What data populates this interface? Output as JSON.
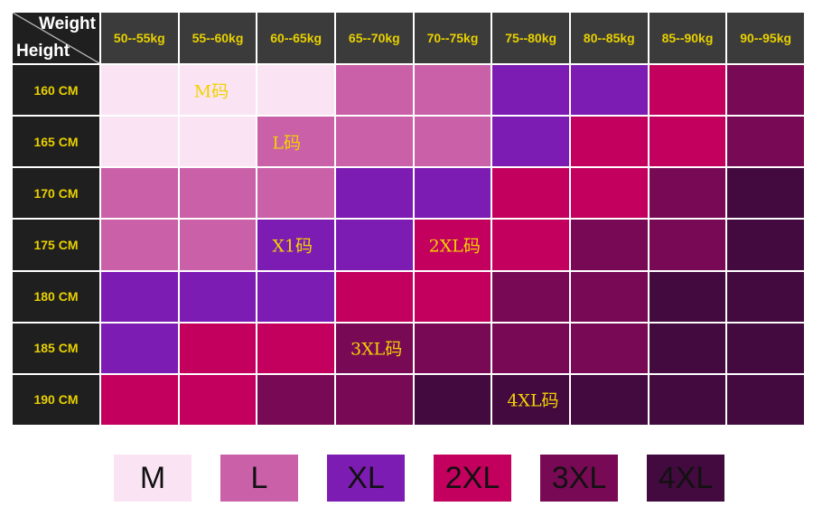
{
  "header": {
    "weight_label": "Weight",
    "height_label": "Height"
  },
  "weights": [
    "50--55kg",
    "55--60kg",
    "60--65kg",
    "65--70kg",
    "70--75kg",
    "75--80kg",
    "80--85kg",
    "85--90kg",
    "90--95kg"
  ],
  "heights": [
    "160 CM",
    "165 CM",
    "170 CM",
    "175 CM",
    "180 CM",
    "185 CM",
    "190 CM"
  ],
  "size_colors": {
    "M": "#fae4f4",
    "L": "#c960a8",
    "XL": "#7c1cb3",
    "2XL": "#c4005e",
    "3XL": "#780a55",
    "4XL": "#420a3f"
  },
  "grid_sizes": [
    [
      "M",
      "M",
      "M",
      "L",
      "L",
      "XL",
      "XL",
      "2XL",
      "3XL"
    ],
    [
      "M",
      "M",
      "L",
      "L",
      "L",
      "XL",
      "2XL",
      "2XL",
      "3XL"
    ],
    [
      "L",
      "L",
      "L",
      "XL",
      "XL",
      "2XL",
      "2XL",
      "3XL",
      "4XL"
    ],
    [
      "L",
      "L",
      "XL",
      "XL",
      "2XL",
      "2XL",
      "3XL",
      "3XL",
      "4XL"
    ],
    [
      "XL",
      "XL",
      "XL",
      "2XL",
      "2XL",
      "3XL",
      "3XL",
      "4XL",
      "4XL"
    ],
    [
      "XL",
      "2XL",
      "2XL",
      "3XL",
      "3XL",
      "3XL",
      "3XL",
      "4XL",
      "4XL"
    ],
    [
      "2XL",
      "2XL",
      "3XL",
      "3XL",
      "4XL",
      "4XL",
      "4XL",
      "4XL",
      "4XL"
    ]
  ],
  "cell_labels": [
    {
      "row": 0,
      "col": 1,
      "text": "M码"
    },
    {
      "row": 1,
      "col": 2,
      "text": "L码"
    },
    {
      "row": 3,
      "col": 2,
      "text": "X1码"
    },
    {
      "row": 3,
      "col": 4,
      "text": "2XL码"
    },
    {
      "row": 5,
      "col": 3,
      "text": "3XL码"
    },
    {
      "row": 6,
      "col": 5,
      "text": "4XL码"
    }
  ],
  "legend": [
    {
      "label": "M",
      "color": "#fae4f4"
    },
    {
      "label": "L",
      "color": "#c960a8"
    },
    {
      "label": "XL",
      "color": "#7c1cb3"
    },
    {
      "label": "2XL",
      "color": "#c4005e"
    },
    {
      "label": "3XL",
      "color": "#780a55"
    },
    {
      "label": "4XL",
      "color": "#420a3f"
    }
  ]
}
